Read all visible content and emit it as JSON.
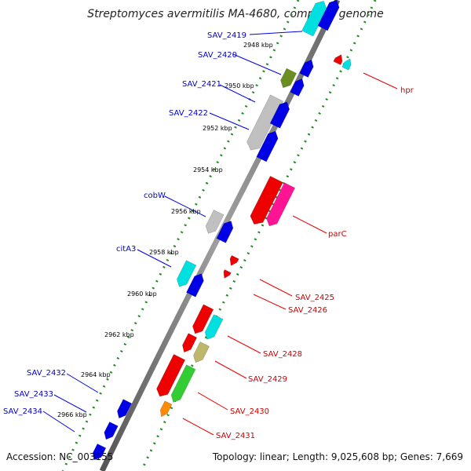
{
  "title": "Streptomyces avermitilis MA-4680, complete genome",
  "footer": {
    "accession": "Accession: NC_003155",
    "summary": "Topology: linear; Length: 9,025,608 bp; Genes: 7,669"
  },
  "colors": {
    "backbone": "#808080",
    "tick_dots": "#228b22",
    "left_label": "#0000cc",
    "right_label": "#cc0000",
    "blue": "#0000e6",
    "red": "#ee0000",
    "cyan": "#00e0e0",
    "gray": "#c0c0c0",
    "olive": "#6b8e23",
    "magenta": "#ff1493",
    "khaki": "#bdb76b",
    "green": "#32cd32",
    "orange": "#ff8c00"
  },
  "ticks": [
    "2948 kbp",
    "2950 kbp",
    "2952 kbp",
    "2954 kbp",
    "2956 kbp",
    "2958 kbp",
    "2960 kbp",
    "2962 kbp",
    "2964 kbp",
    "2966 kbp"
  ],
  "left_genes": [
    "SAV_2419",
    "SAV_2420",
    "SAV_2421",
    "SAV_2422",
    "cobW",
    "citA3",
    "SAV_2432",
    "SAV_2433",
    "SAV_2434"
  ],
  "right_genes": [
    "hpr",
    "parC",
    "SAV_2425",
    "SAV_2426",
    "SAV_2428",
    "SAV_2429",
    "SAV_2430",
    "SAV_2431"
  ]
}
